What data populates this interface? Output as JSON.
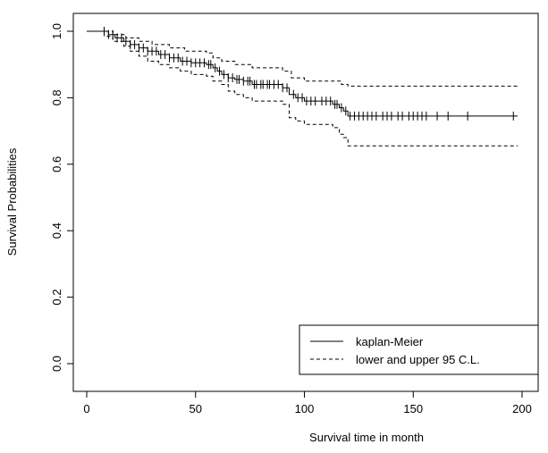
{
  "chart_data": {
    "type": "line",
    "title": "",
    "xlabel": "Survival time in month",
    "ylabel": "Survival Probabilities",
    "xlim": [
      0,
      200
    ],
    "ylim": [
      0,
      1.0
    ],
    "xticks": [
      "0",
      "50",
      "100",
      "150",
      "200"
    ],
    "yticks": [
      "0.0",
      "0.2",
      "0.4",
      "0.6",
      "0.8",
      "1.0"
    ],
    "grid": false,
    "legend_position": "bottom-right",
    "legend": [
      {
        "label": "kaplan-Meier",
        "style": "solid"
      },
      {
        "label": "lower and upper 95 C.L.",
        "style": "dashed"
      }
    ],
    "series": [
      {
        "name": "kaplan-Meier",
        "style": "solid",
        "color": "#000000",
        "step": true,
        "x": [
          0,
          10,
          13,
          17,
          20,
          24,
          28,
          33,
          38,
          43,
          48,
          55,
          58,
          60,
          62,
          65,
          68,
          72,
          76,
          90,
          93,
          96,
          100,
          113,
          116,
          118,
          120,
          198
        ],
        "y": [
          1.0,
          0.99,
          0.98,
          0.97,
          0.96,
          0.95,
          0.94,
          0.93,
          0.92,
          0.91,
          0.905,
          0.9,
          0.89,
          0.88,
          0.87,
          0.86,
          0.855,
          0.85,
          0.84,
          0.83,
          0.81,
          0.8,
          0.79,
          0.78,
          0.77,
          0.76,
          0.745,
          0.745
        ]
      },
      {
        "name": "",
        "style": "dashed",
        "color": "#000000",
        "step": true,
        "x": [
          0,
          12,
          18,
          24,
          30,
          38,
          45,
          55,
          58,
          62,
          68,
          76,
          90,
          94,
          100,
          113,
          117,
          118,
          120,
          198
        ],
        "y": [
          1.0,
          0.99,
          0.98,
          0.97,
          0.96,
          0.95,
          0.94,
          0.935,
          0.92,
          0.91,
          0.9,
          0.89,
          0.88,
          0.86,
          0.85,
          0.85,
          0.84,
          0.84,
          0.835,
          0.835
        ]
      },
      {
        "name": "",
        "style": "dashed",
        "color": "#000000",
        "step": true,
        "x": [
          0,
          8,
          12,
          17,
          20,
          24,
          28,
          33,
          38,
          43,
          48,
          55,
          58,
          62,
          65,
          68,
          72,
          76,
          90,
          93,
          96,
          100,
          113,
          116,
          118,
          120,
          198
        ],
        "y": [
          1.0,
          0.985,
          0.97,
          0.955,
          0.94,
          0.925,
          0.91,
          0.9,
          0.89,
          0.88,
          0.87,
          0.865,
          0.85,
          0.84,
          0.82,
          0.81,
          0.8,
          0.79,
          0.78,
          0.74,
          0.73,
          0.72,
          0.71,
          0.69,
          0.68,
          0.655,
          0.655
        ]
      }
    ],
    "censor_marks": {
      "x": [
        8,
        10,
        12,
        14,
        16,
        18,
        20,
        22,
        24,
        26,
        28,
        30,
        32,
        34,
        36,
        38,
        40,
        42,
        44,
        46,
        48,
        50,
        52,
        54,
        56,
        57,
        59,
        61,
        63,
        65,
        67,
        69,
        70,
        72,
        74,
        75,
        77,
        78,
        80,
        81,
        83,
        84,
        86,
        88,
        90,
        92,
        95,
        97,
        99,
        101,
        103,
        105,
        108,
        110,
        112,
        114,
        115,
        117,
        119,
        121,
        123,
        125,
        127,
        129,
        131,
        133,
        136,
        138,
        140,
        143,
        145,
        148,
        150,
        152,
        154,
        156,
        161,
        166,
        175,
        196
      ]
    }
  }
}
